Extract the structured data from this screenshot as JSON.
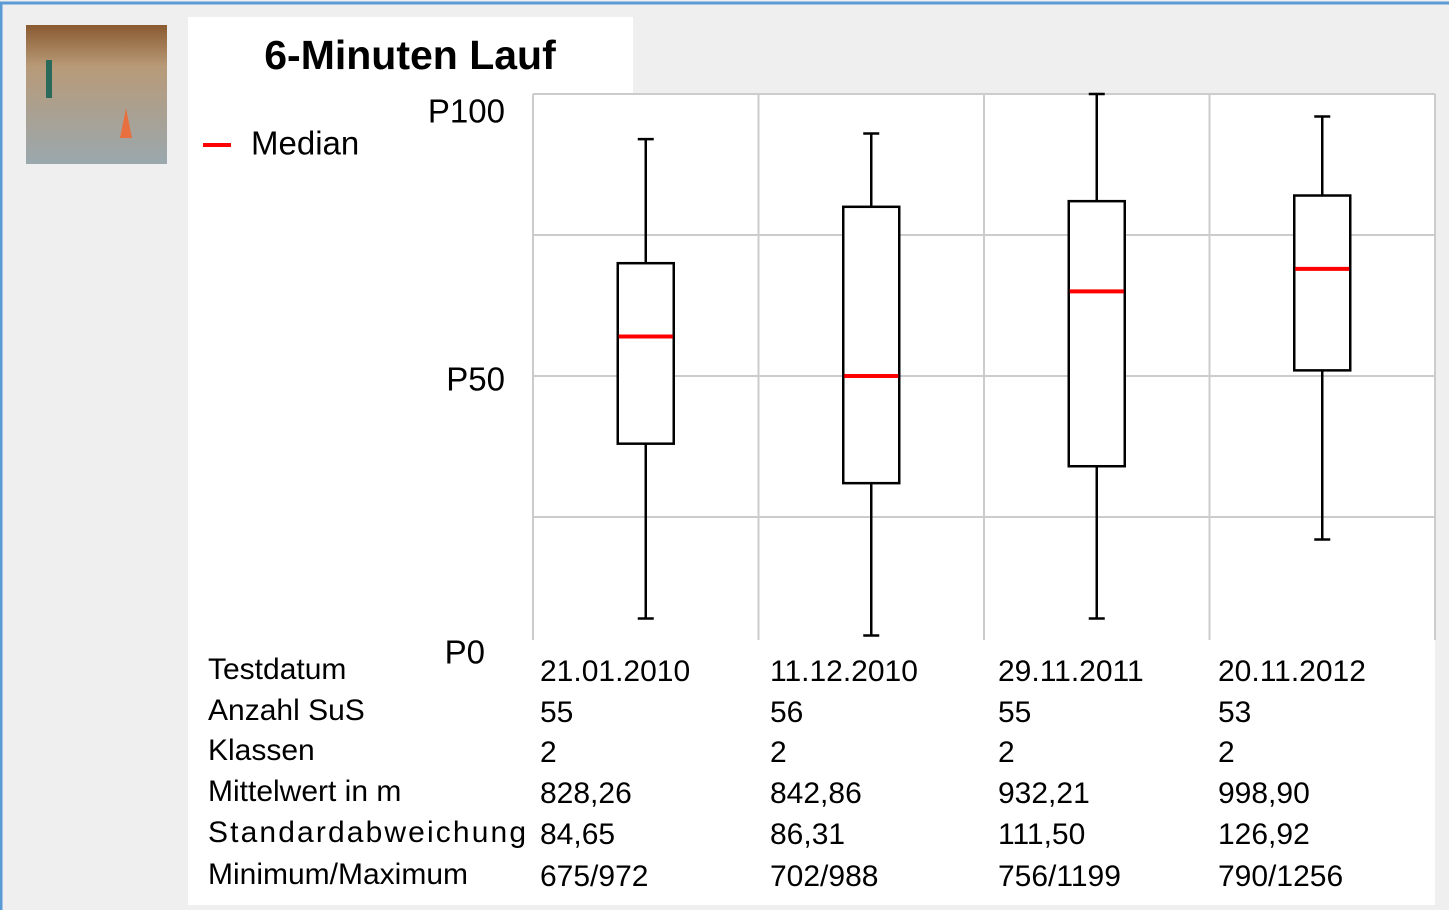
{
  "chart_data": {
    "type": "box",
    "title": "6-Minuten Lauf",
    "legend": {
      "label": "Median",
      "color": "#ff0000",
      "corner": "top-left"
    },
    "categories": [
      "21.01.2010",
      "11.12.2010",
      "29.11.2011",
      "20.11.2012"
    ],
    "boxes": [
      {
        "min": 7,
        "q1": 38,
        "median": 57,
        "q3": 70,
        "max": 92
      },
      {
        "min": 4,
        "q1": 31,
        "median": 50,
        "q3": 80,
        "max": 93
      },
      {
        "min": 7,
        "q1": 34,
        "median": 65,
        "q3": 81,
        "max": 100
      },
      {
        "min": 21,
        "q1": 51,
        "median": 69,
        "q3": 82,
        "max": 96
      }
    ],
    "box_color": "#000000",
    "ylim": [
      0,
      100
    ],
    "yticks": [
      {
        "value": 0,
        "label": "P0"
      },
      {
        "value": 25,
        "label": null
      },
      {
        "value": 50,
        "label": "P50"
      },
      {
        "value": 75,
        "label": null
      },
      {
        "value": 100,
        "label": "P100"
      }
    ],
    "grid": true
  },
  "table": {
    "row_labels": [
      "Testdatum",
      "Anzahl SuS",
      "Klassen",
      "Mittelwert in m",
      "Standardabweichung",
      "Minimum/Maximum"
    ],
    "rows": [
      [
        "55",
        "56",
        "55",
        "53"
      ],
      [
        "2",
        "2",
        "2",
        "2"
      ],
      [
        "828,26",
        "842,86",
        "932,21",
        "998,90"
      ],
      [
        "84,65",
        "86,31",
        "111,50",
        "126,92"
      ],
      [
        "675/972",
        "702/988",
        "756/1199",
        "790/1256"
      ]
    ]
  }
}
